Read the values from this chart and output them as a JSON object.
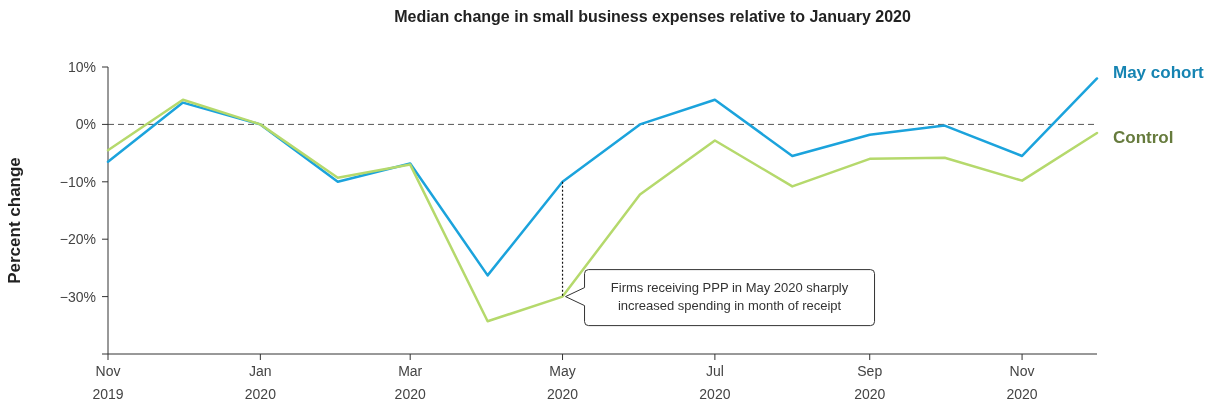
{
  "chart_data": {
    "type": "line",
    "title": "Median change in small business expenses relative to January 2020",
    "ylabel": "Percent change",
    "x": [
      "2019-11",
      "2019-12",
      "2020-01",
      "2020-02",
      "2020-03",
      "2020-04",
      "2020-05",
      "2020-06",
      "2020-07",
      "2020-08",
      "2020-09",
      "2020-10",
      "2020-11",
      "2020-12"
    ],
    "series": [
      {
        "name": "May cohort",
        "color": "#1ba3dc",
        "values": [
          -6.5,
          3.8,
          0,
          -10,
          -6.8,
          -26.3,
          -10,
          0,
          4.3,
          -5.5,
          -1.8,
          -0.2,
          -5.5,
          8
        ]
      },
      {
        "name": "Control",
        "color": "#b5d96c",
        "values": [
          -4.5,
          4.3,
          0,
          -9.3,
          -7,
          -34.3,
          -30,
          -12.2,
          -2.8,
          -10.8,
          -6,
          -5.8,
          -9.8,
          -1.5
        ]
      }
    ],
    "xlim": [
      "2019-11",
      "2020-12"
    ],
    "xticks": [
      {
        "value": "2019-11",
        "label": "Nov 2019"
      },
      {
        "value": "2020-01",
        "label": "Jan 2020"
      },
      {
        "value": "2020-03",
        "label": "Mar 2020"
      },
      {
        "value": "2020-05",
        "label": "May 2020"
      },
      {
        "value": "2020-07",
        "label": "Jul 2020"
      },
      {
        "value": "2020-09",
        "label": "Sep 2020"
      },
      {
        "value": "2020-11",
        "label": "Nov 2020"
      }
    ],
    "ylim": [
      -40,
      10
    ],
    "yticks": [
      {
        "value": 10,
        "label": "10%"
      },
      {
        "value": 0,
        "label": "0%"
      },
      {
        "value": -10,
        "label": "−10%"
      },
      {
        "value": -20,
        "label": "−20%"
      },
      {
        "value": -30,
        "label": "−30%"
      },
      {
        "value": -40,
        "label": null
      }
    ],
    "ref_lines": [
      {
        "axis": "y",
        "value": 0,
        "color": "#555555",
        "line_style": "dashed"
      }
    ],
    "annotations": [
      "Firms receiving PPP in May 2020 sharply increased spending in month of receipt"
    ],
    "legend": "right",
    "grid": false,
    "marker": "none",
    "line_style": "solid"
  }
}
